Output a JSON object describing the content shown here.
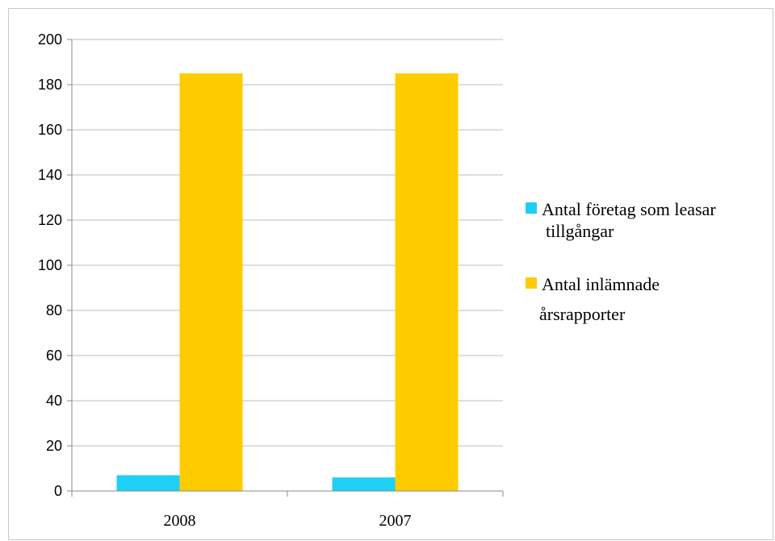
{
  "chart_data": {
    "type": "bar",
    "categories": [
      "2008",
      "2007"
    ],
    "series": [
      {
        "name": "Antal företag som leasar tillgångar",
        "values": [
          7,
          6
        ],
        "color": "#1fcff5",
        "legend_lines": [
          "Antal företag som leasar",
          "tillgångar"
        ]
      },
      {
        "name": "Antal inlämnade årsrapporter",
        "values": [
          185,
          185
        ],
        "color": "#ffcc00",
        "legend_lines": [
          "Antal inlämnade",
          "årsrapporter"
        ]
      }
    ],
    "ylim": [
      0,
      200
    ],
    "yticks": [
      "0",
      "20",
      "40",
      "60",
      "80",
      "100",
      "120",
      "140",
      "160",
      "180",
      "200"
    ],
    "grid": true,
    "legend_position": "right",
    "title": "",
    "xlabel": "",
    "ylabel": ""
  }
}
